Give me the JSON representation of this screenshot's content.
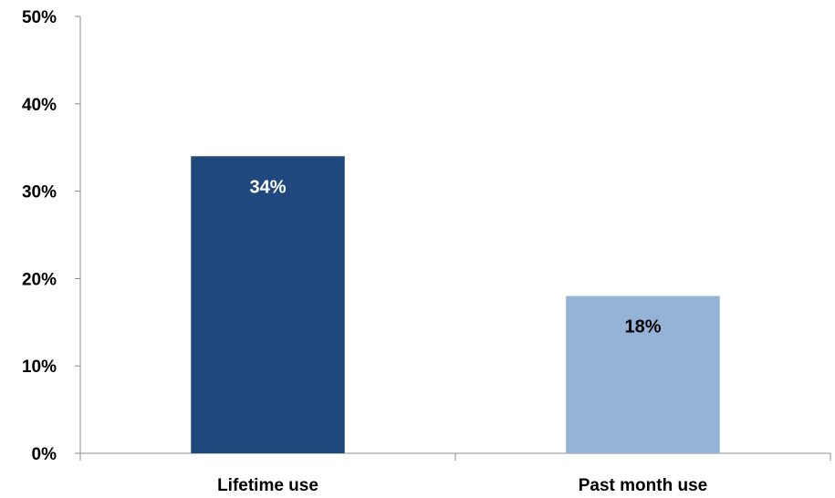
{
  "chart_data": {
    "type": "bar",
    "categories": [
      "Lifetime use",
      "Past month use"
    ],
    "values": [
      34,
      18
    ],
    "data_labels": [
      "34%",
      "18%"
    ],
    "bar_colors": [
      "#1f497d",
      "#95b3d7"
    ],
    "data_label_colors": [
      "#ffffff",
      "#000000"
    ],
    "ylim": [
      0,
      50
    ],
    "yticks": [
      0,
      10,
      20,
      30,
      40,
      50
    ],
    "ytick_labels": [
      "0%",
      "10%",
      "20%",
      "30%",
      "40%",
      "50%"
    ],
    "grid": false,
    "legend": "none"
  }
}
